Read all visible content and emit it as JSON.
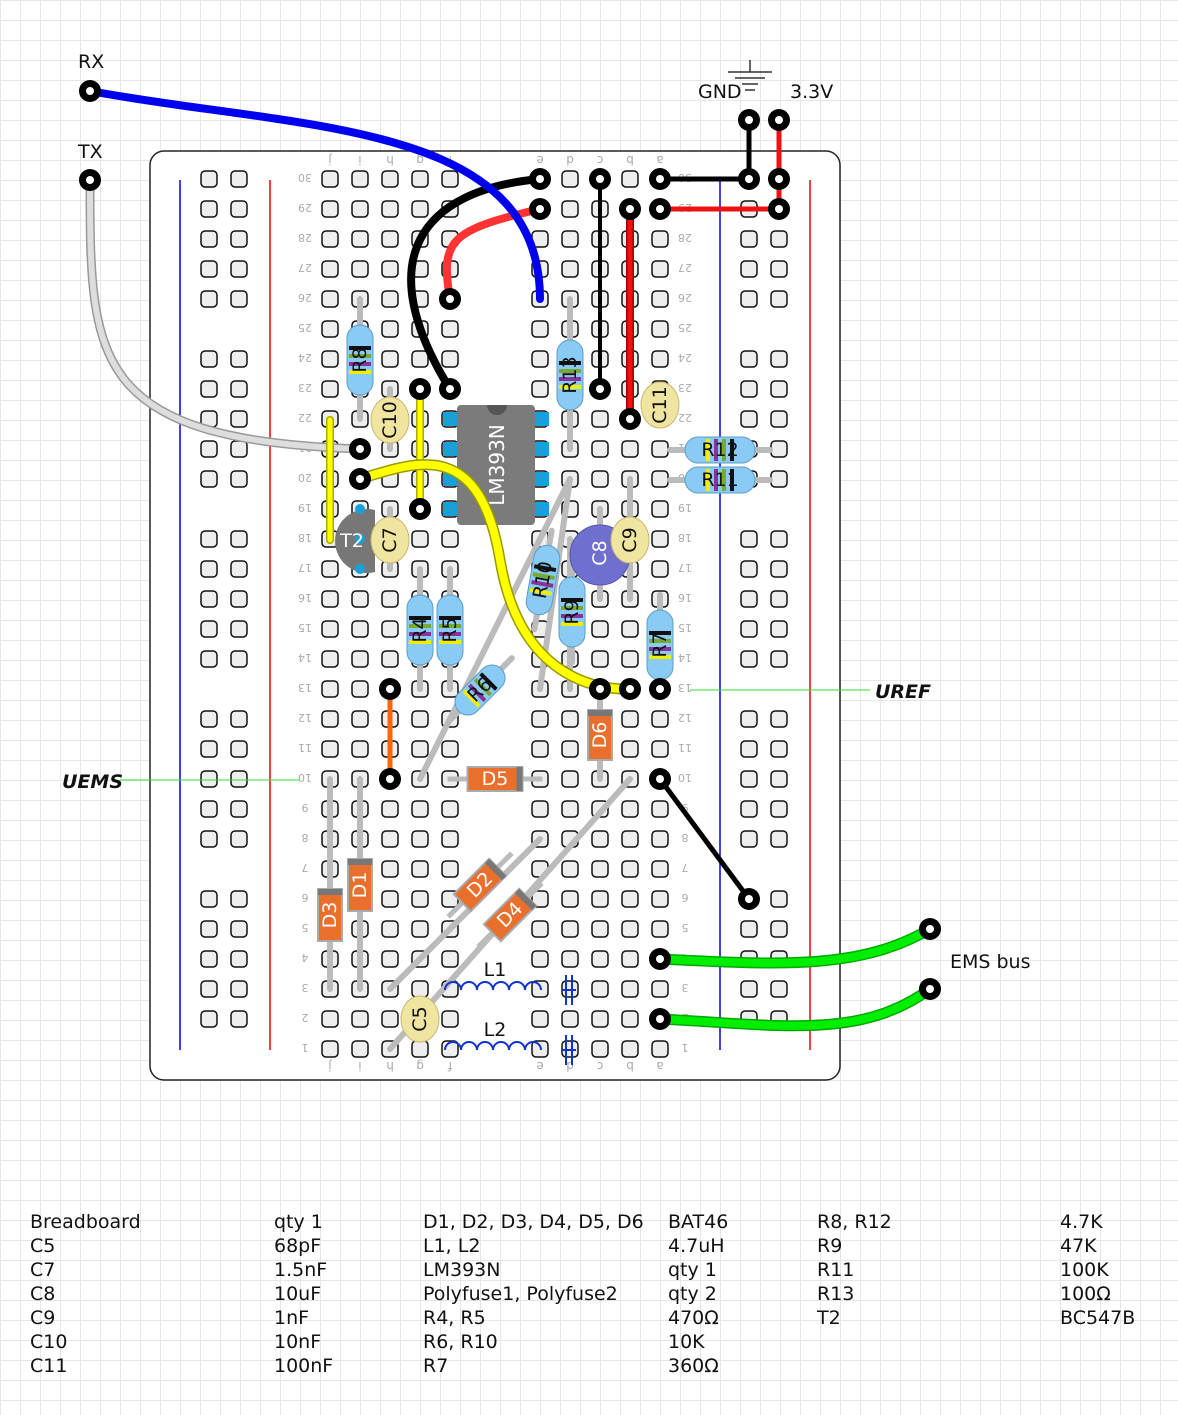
{
  "breadboard": {
    "column_letters": [
      "j",
      "i",
      "h",
      "g",
      "f",
      "e",
      "d",
      "c",
      "b",
      "a"
    ],
    "rows": 30
  },
  "external_labels": {
    "rx": "RX",
    "tx": "TX",
    "gnd": "GND",
    "v33": "3.3V",
    "uems": "UEMS",
    "uref": "UREF",
    "ems_bus": "EMS bus"
  },
  "parts": {
    "ic": "LM393N",
    "t2": "T2",
    "r4": "R4",
    "r5": "R5",
    "r6": "R6",
    "r7": "R7",
    "r8": "R8",
    "r9": "R9",
    "r10": "R10",
    "r11": "R11",
    "r12": "R12",
    "r13": "R13",
    "c5": "C5",
    "c7": "C7",
    "c8": "C8",
    "c9": "C9",
    "c10": "C10",
    "c11": "C11",
    "d1": "D1",
    "d2": "D2",
    "d3": "D3",
    "d4": "D4",
    "d5": "D5",
    "d6": "D6",
    "l1": "L1",
    "l2": "L2"
  },
  "colors": {
    "wire_blue": "#0000ee",
    "wire_red": "#ee1111",
    "wire_black": "#000000",
    "wire_yellow": "#ffff00",
    "wire_orange": "#ff6600",
    "wire_green": "#00ee00",
    "wire_white": "#dddddd",
    "resistor": "#8acbf5",
    "ceramic_cap": "#efe5a0",
    "diode": "#e86f2c",
    "electrolytic": "#6f6fd0",
    "annotation_line": "#33dd33"
  },
  "bom": {
    "col1": [
      "Breadboard",
      "C5",
      "C7",
      "C8",
      "C9",
      "C10",
      "C11"
    ],
    "col2": [
      "qty 1",
      "68pF",
      "1.5nF",
      "10uF",
      "1nF",
      "10nF",
      "100nF"
    ],
    "col3": [
      "D1, D2, D3, D4, D5, D6",
      "L1, L2",
      "LM393N",
      "Polyfuse1, Polyfuse2",
      "R4, R5",
      "R6, R10",
      "R7"
    ],
    "col4": [
      "BAT46",
      "4.7uH",
      "qty 1",
      "qty 2",
      "470Ω",
      "10K",
      "360Ω"
    ],
    "col5": [
      "R8, R12",
      "R9",
      "R11",
      "R13",
      "T2"
    ],
    "col6": [
      "4.7K",
      "47K",
      "100K",
      "100Ω",
      "BC547B"
    ]
  }
}
